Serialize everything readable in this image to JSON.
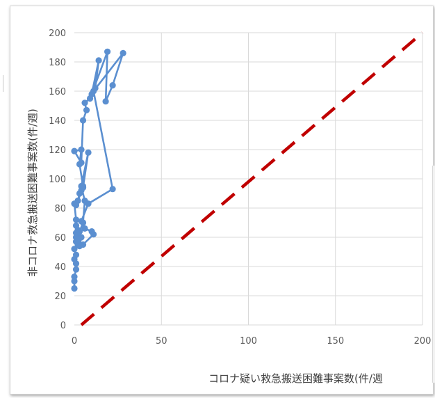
{
  "colors": {
    "grid": "#d9d9d9",
    "series": "#5b8fd0",
    "reference_line": "#c00000",
    "tick_text": "#595959",
    "axis_title": "#404040"
  },
  "chart_data": {
    "type": "scatter",
    "title": "",
    "xlabel": "コロナ疑い救急搬送困難事案数(件/週",
    "ylabel": "非コロナ救急搬送困難事案数(件/週)",
    "xlim": [
      0,
      200
    ],
    "ylim": [
      0,
      200
    ],
    "xticks": [
      0,
      50,
      100,
      150,
      200
    ],
    "yticks": [
      0,
      20,
      40,
      60,
      80,
      100,
      120,
      140,
      160,
      180,
      200
    ],
    "grid": true,
    "legend": "none",
    "series": [
      {
        "style": "line-markers",
        "color": "#5b8fd0",
        "points": [
          [
            0,
            25
          ],
          [
            0,
            30
          ],
          [
            0,
            33
          ],
          [
            1,
            38
          ],
          [
            1,
            42
          ],
          [
            0,
            45
          ],
          [
            1,
            48
          ],
          [
            0,
            52
          ],
          [
            2,
            55
          ],
          [
            1,
            57
          ],
          [
            1,
            60
          ],
          [
            1,
            63
          ],
          [
            2,
            65
          ],
          [
            1,
            68
          ],
          [
            1,
            72
          ],
          [
            0,
            83
          ],
          [
            2,
            85
          ],
          [
            3,
            90
          ],
          [
            4,
            92
          ],
          [
            5,
            95
          ],
          [
            3,
            110
          ],
          [
            4,
            120
          ],
          [
            0,
            119
          ],
          [
            4,
            111
          ],
          [
            5,
            140
          ],
          [
            7,
            147
          ],
          [
            6,
            152
          ],
          [
            9,
            155
          ],
          [
            12,
            162
          ],
          [
            14,
            181
          ],
          [
            10,
            158
          ],
          [
            19,
            187
          ],
          [
            18,
            153
          ],
          [
            22,
            164
          ],
          [
            28,
            186
          ],
          [
            11,
            160
          ],
          [
            22,
            93
          ],
          [
            8,
            83
          ],
          [
            4,
            71
          ],
          [
            6,
            66
          ],
          [
            10,
            64
          ],
          [
            11,
            62
          ],
          [
            5,
            55
          ],
          [
            3,
            54
          ],
          [
            4,
            60
          ],
          [
            2,
            58
          ],
          [
            3,
            64
          ],
          [
            5,
            70
          ],
          [
            6,
            85
          ],
          [
            4,
            95
          ],
          [
            8,
            118
          ],
          [
            5,
            94
          ],
          [
            1,
            82
          ]
        ]
      },
      {
        "style": "dashed-line",
        "color": "#c00000",
        "points": [
          [
            4,
            0
          ],
          [
            200,
            200
          ]
        ]
      }
    ]
  }
}
